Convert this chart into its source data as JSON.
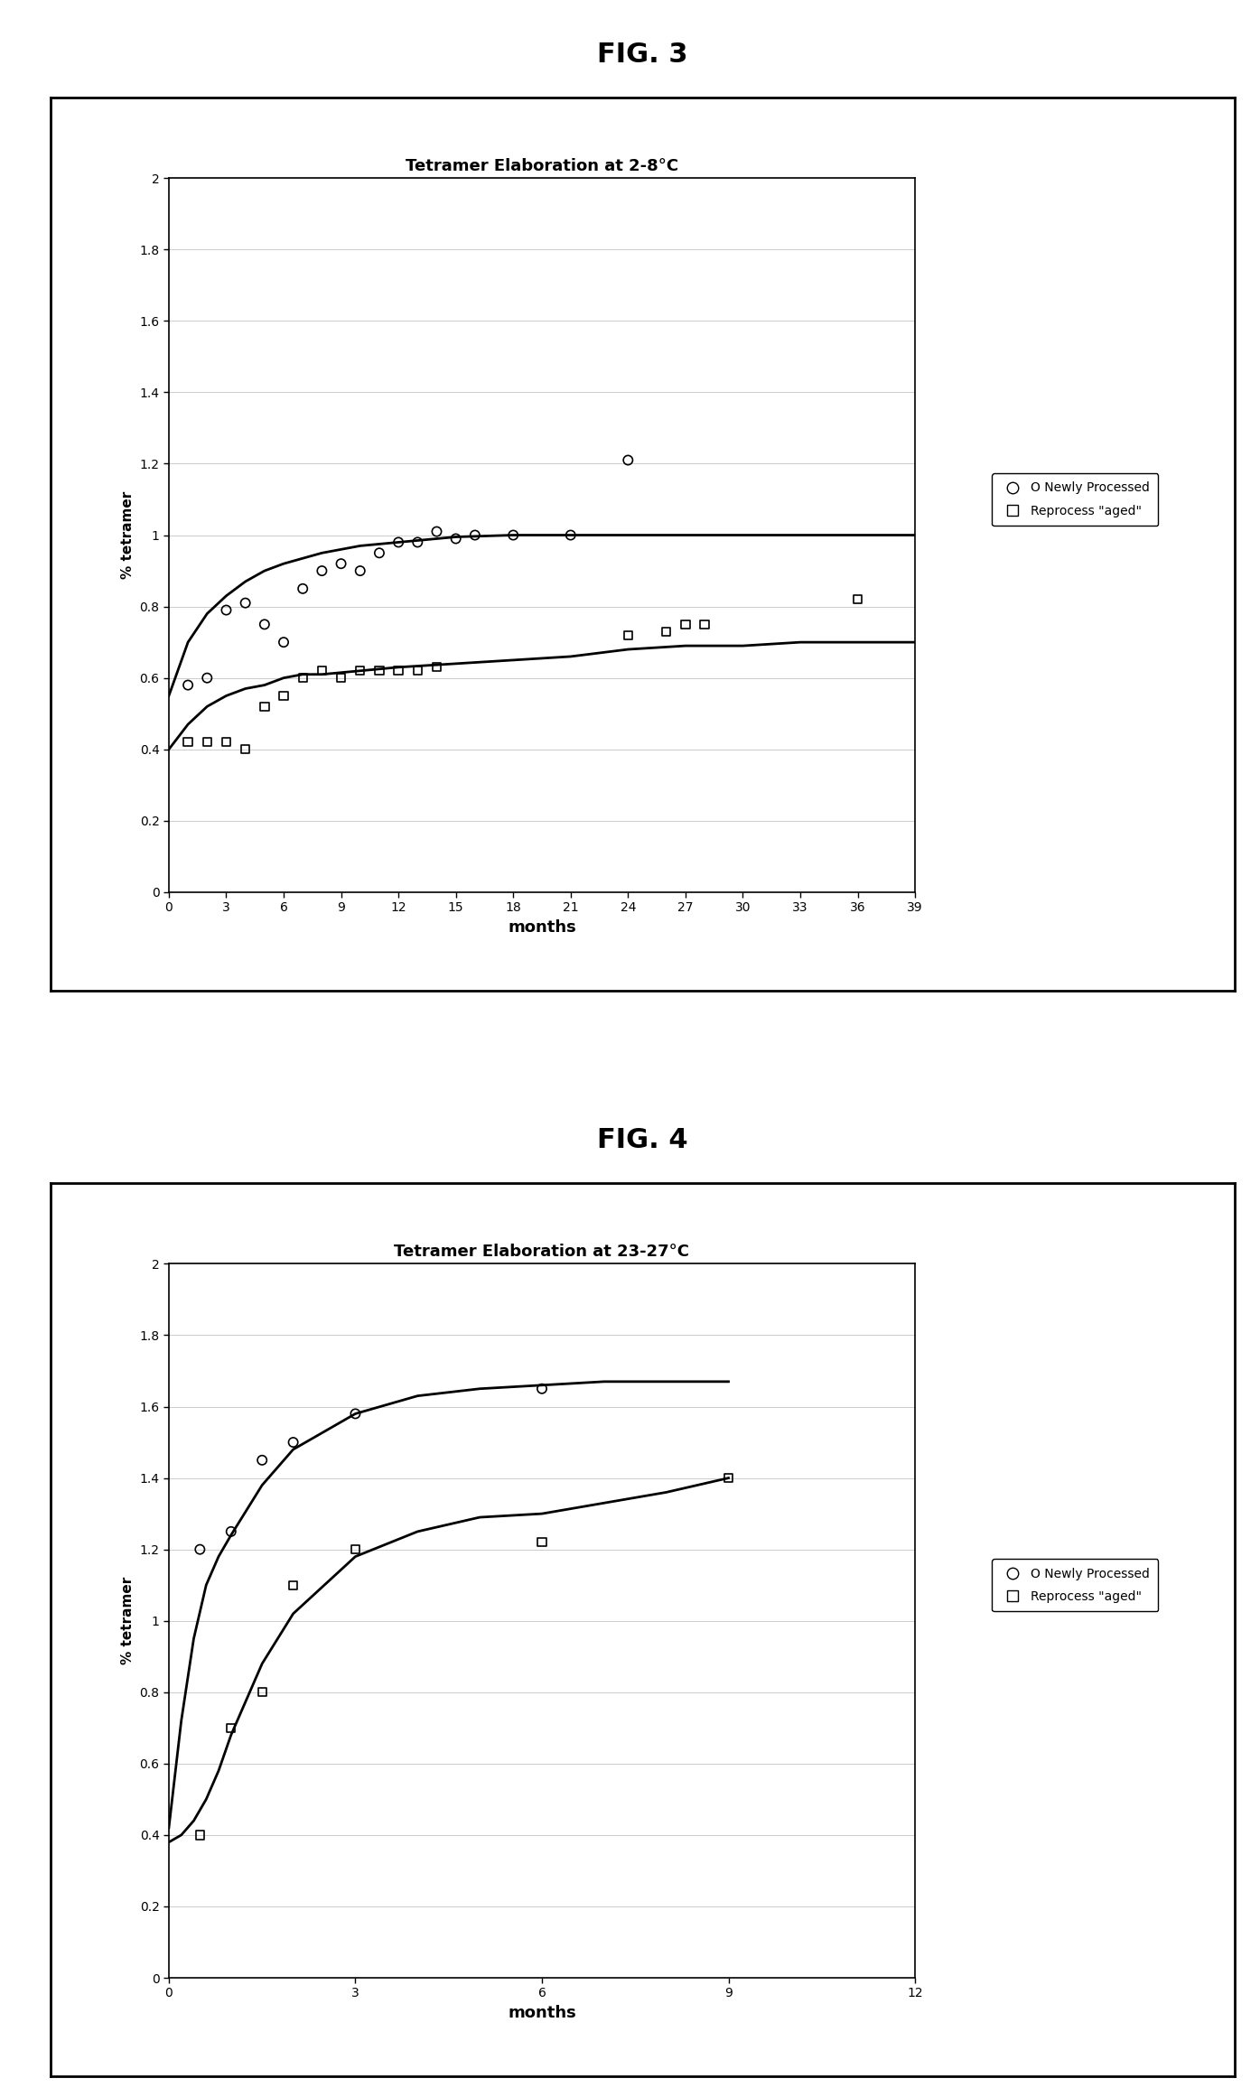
{
  "fig3": {
    "title": "Tetramer Elaboration at 2-8°C",
    "xlabel": "months",
    "ylabel": "% tetramer",
    "xlim": [
      0,
      39
    ],
    "ylim": [
      0,
      2
    ],
    "xticks": [
      0,
      3,
      6,
      9,
      12,
      15,
      18,
      21,
      24,
      27,
      30,
      33,
      36,
      39
    ],
    "yticks": [
      0,
      0.2,
      0.4,
      0.6,
      0.8,
      1.0,
      1.2,
      1.4,
      1.6,
      1.8,
      2.0
    ],
    "ytick_labels": [
      "0",
      "0.2",
      "0.4",
      "0.6",
      "0.8",
      "1",
      "1.2",
      "1.4",
      "1.6",
      "1.8",
      "2"
    ],
    "newly_x": [
      1,
      2,
      3,
      4,
      5,
      6,
      7,
      8,
      9,
      10,
      11,
      12,
      13,
      14,
      15,
      16,
      18,
      21,
      24
    ],
    "newly_y": [
      0.58,
      0.6,
      0.79,
      0.81,
      0.75,
      0.7,
      0.85,
      0.9,
      0.92,
      0.9,
      0.95,
      0.98,
      0.98,
      1.01,
      0.99,
      1.0,
      1.0,
      1.0,
      1.21
    ],
    "reprocess_x": [
      1,
      2,
      3,
      4,
      5,
      6,
      7,
      8,
      9,
      10,
      11,
      12,
      13,
      14,
      24,
      26,
      27,
      28,
      36
    ],
    "reprocess_y": [
      0.42,
      0.42,
      0.42,
      0.4,
      0.52,
      0.55,
      0.6,
      0.62,
      0.6,
      0.62,
      0.62,
      0.62,
      0.62,
      0.63,
      0.72,
      0.73,
      0.75,
      0.75,
      0.82
    ],
    "curve_newly_x": [
      0,
      1,
      2,
      3,
      4,
      5,
      6,
      8,
      10,
      12,
      15,
      18,
      21,
      24,
      27,
      30,
      33,
      36,
      39
    ],
    "curve_newly_y": [
      0.55,
      0.7,
      0.78,
      0.83,
      0.87,
      0.9,
      0.92,
      0.95,
      0.97,
      0.98,
      0.995,
      1.0,
      1.0,
      1.0,
      1.0,
      1.0,
      1.0,
      1.0,
      1.0
    ],
    "curve_reprocess_x": [
      0,
      1,
      2,
      3,
      4,
      5,
      6,
      7,
      8,
      10,
      12,
      15,
      18,
      21,
      24,
      27,
      30,
      33,
      36,
      39
    ],
    "curve_reprocess_y": [
      0.4,
      0.47,
      0.52,
      0.55,
      0.57,
      0.58,
      0.6,
      0.61,
      0.61,
      0.62,
      0.63,
      0.64,
      0.65,
      0.66,
      0.68,
      0.69,
      0.69,
      0.7,
      0.7,
      0.7
    ]
  },
  "fig4": {
    "title": "Tetramer Elaboration at 23-27°C",
    "xlabel": "months",
    "ylabel": "% tetramer",
    "xlim": [
      0,
      12
    ],
    "ylim": [
      0,
      2
    ],
    "xticks": [
      0,
      3,
      6,
      9,
      12
    ],
    "yticks": [
      0,
      0.2,
      0.4,
      0.6,
      0.8,
      1.0,
      1.2,
      1.4,
      1.6,
      1.8,
      2.0
    ],
    "ytick_labels": [
      "0",
      "0.2",
      "0.4",
      "0.6",
      "0.8",
      "1",
      "1.2",
      "1.4",
      "1.6",
      "1.8",
      "2"
    ],
    "newly_x": [
      0.5,
      1.0,
      1.5,
      2.0,
      3.0,
      6.0
    ],
    "newly_y": [
      1.2,
      1.25,
      1.45,
      1.5,
      1.58,
      1.65
    ],
    "reprocess_x": [
      0.5,
      1.0,
      1.5,
      2.0,
      3.0,
      6.0,
      9.0
    ],
    "reprocess_y": [
      0.4,
      0.7,
      0.8,
      1.1,
      1.2,
      1.22,
      1.4
    ],
    "curve_newly_x": [
      0,
      0.2,
      0.4,
      0.6,
      0.8,
      1.0,
      1.5,
      2.0,
      3.0,
      4.0,
      5.0,
      6.0,
      7.0,
      8.0,
      9.0
    ],
    "curve_newly_y": [
      0.42,
      0.72,
      0.95,
      1.1,
      1.18,
      1.24,
      1.38,
      1.48,
      1.58,
      1.63,
      1.65,
      1.66,
      1.67,
      1.67,
      1.67
    ],
    "curve_reprocess_x": [
      0,
      0.2,
      0.4,
      0.6,
      0.8,
      1.0,
      1.5,
      2.0,
      3.0,
      4.0,
      5.0,
      6.0,
      7.0,
      8.0,
      9.0
    ],
    "curve_reprocess_y": [
      0.38,
      0.4,
      0.44,
      0.5,
      0.58,
      0.68,
      0.88,
      1.02,
      1.18,
      1.25,
      1.29,
      1.3,
      1.33,
      1.36,
      1.4
    ]
  },
  "fig3_label": "FIG. 3",
  "fig4_label": "FIG. 4",
  "background_color": "#ffffff"
}
